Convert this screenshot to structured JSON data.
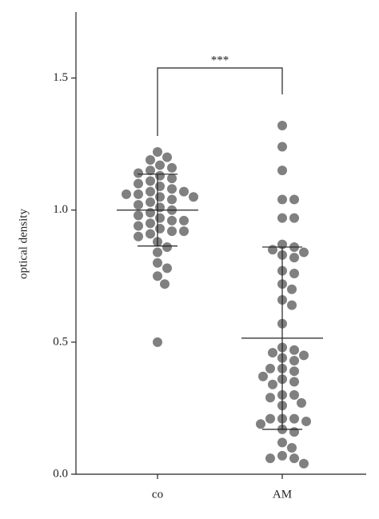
{
  "chart_data": {
    "type": "strip",
    "y_label": "optical density",
    "annotation": "***",
    "categories": [
      "co",
      "AM"
    ],
    "ylim": [
      0,
      1.75
    ],
    "yticks": [
      {
        "value": 0,
        "label": "0.0"
      },
      0.5,
      {
        "value": 1,
        "label": "1.0"
      },
      1.5
    ],
    "color": "#808080",
    "series": [
      {
        "mean": 1.0,
        "sd": 0.136,
        "values": [
          1.22,
          1.2,
          1.19,
          1.17,
          1.16,
          1.15,
          1.14,
          1.13,
          1.12,
          1.11,
          1.1,
          1.09,
          1.08,
          1.07,
          1.07,
          1.06,
          1.06,
          1.05,
          1.05,
          1.04,
          1.03,
          1.02,
          1.01,
          1.0,
          0.99,
          0.98,
          0.97,
          0.96,
          0.96,
          0.95,
          0.94,
          0.93,
          0.92,
          0.92,
          0.91,
          0.9,
          0.88,
          0.86,
          0.84,
          0.8,
          0.78,
          0.75,
          0.72,
          0.5
        ]
      },
      {
        "mean": 0.515,
        "sd": 0.345,
        "values": [
          1.32,
          1.24,
          1.15,
          1.04,
          1.04,
          0.97,
          0.97,
          0.87,
          0.86,
          0.85,
          0.84,
          0.83,
          0.82,
          0.77,
          0.76,
          0.72,
          0.7,
          0.66,
          0.64,
          0.57,
          0.48,
          0.47,
          0.46,
          0.45,
          0.44,
          0.43,
          0.4,
          0.4,
          0.39,
          0.37,
          0.36,
          0.35,
          0.34,
          0.3,
          0.3,
          0.29,
          0.27,
          0.26,
          0.21,
          0.21,
          0.21,
          0.2,
          0.19,
          0.17,
          0.16,
          0.12,
          0.1,
          0.07,
          0.06,
          0.06,
          0.04
        ]
      }
    ]
  }
}
